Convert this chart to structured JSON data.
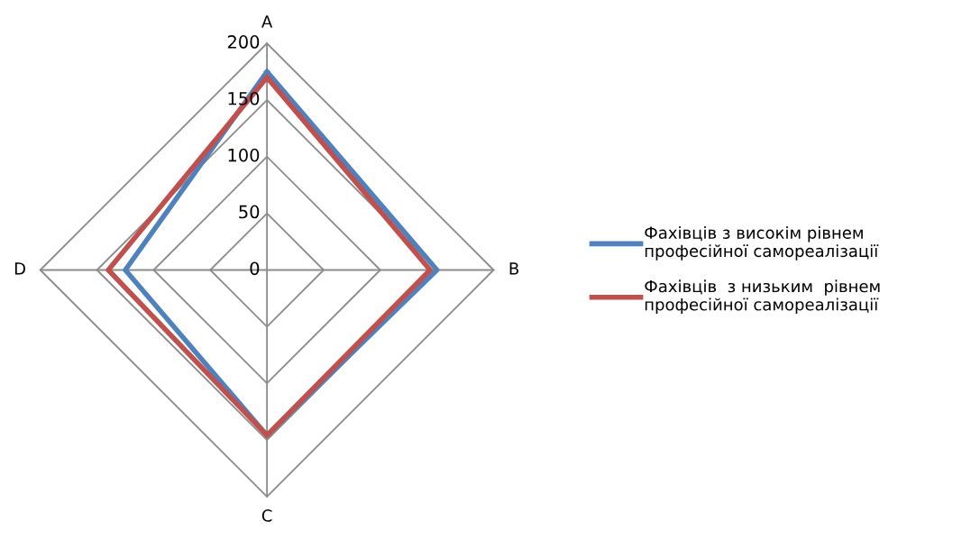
{
  "chart_data": {
    "type": "radar",
    "categories": [
      "A",
      "B",
      "C",
      "D"
    ],
    "ylim": [
      0,
      200
    ],
    "yticks": [
      0,
      50,
      100,
      150,
      200
    ],
    "grid": true,
    "legend": "right",
    "line_style": "solid",
    "marker": "none",
    "series": [
      {
        "name": "Фахівців з високім рівнем\nпрофесійної самореалізації",
        "color": "#4f81bd",
        "values": [
          175,
          150,
          146,
          125
        ]
      },
      {
        "name": "Фахівців  з низьким  рівнем\nпрофесійної самореалізації",
        "color": "#c0504d",
        "values": [
          170,
          144,
          146,
          140
        ]
      }
    ]
  }
}
